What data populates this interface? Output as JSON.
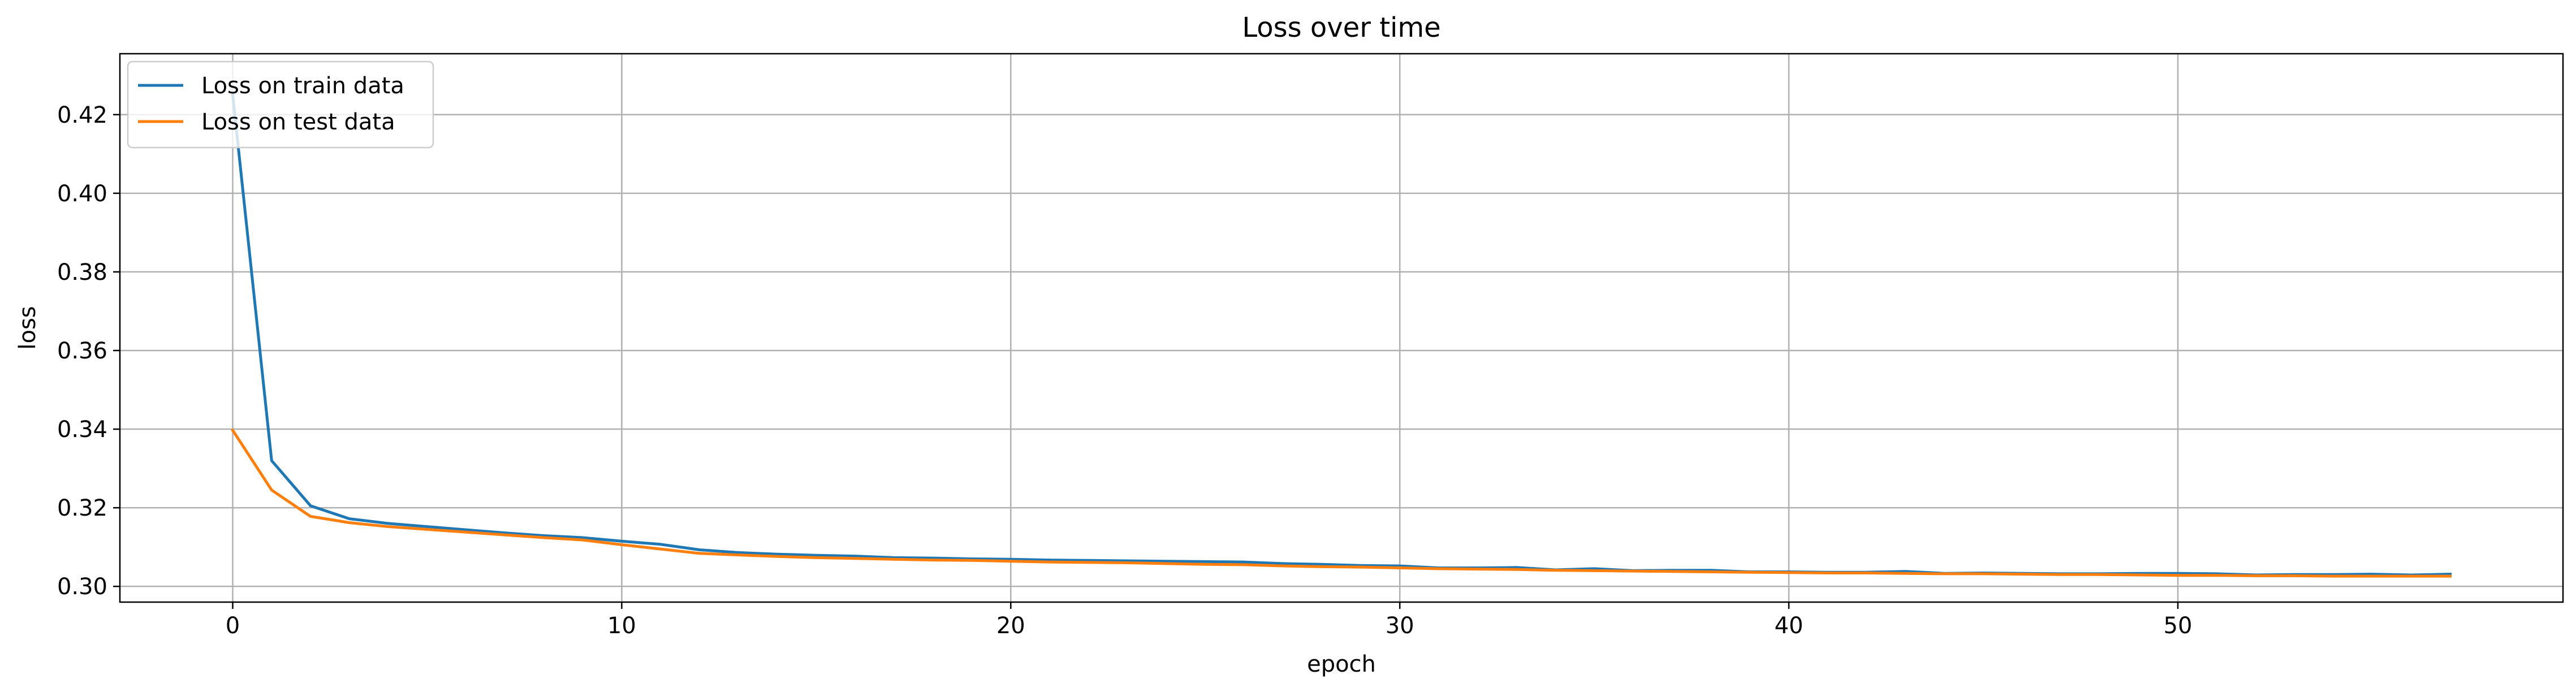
{
  "chart_data": {
    "type": "line",
    "title": "Loss over time",
    "xlabel": "epoch",
    "ylabel": "loss",
    "xlim": [
      -2.9,
      59.9
    ],
    "ylim": [
      0.296,
      0.4355
    ],
    "xticks": [
      0,
      10,
      20,
      30,
      40,
      50
    ],
    "yticks": [
      0.3,
      0.32,
      0.34,
      0.36,
      0.38,
      0.4,
      0.42
    ],
    "ytick_labels": [
      "0.30",
      "0.32",
      "0.34",
      "0.36",
      "0.38",
      "0.40",
      "0.42"
    ],
    "grid": true,
    "legend_position": "upper left",
    "x": [
      0,
      1,
      2,
      3,
      4,
      5,
      6,
      7,
      8,
      9,
      10,
      11,
      12,
      13,
      14,
      15,
      16,
      17,
      18,
      19,
      20,
      21,
      22,
      23,
      24,
      25,
      26,
      27,
      28,
      29,
      30,
      31,
      32,
      33,
      34,
      35,
      36,
      37,
      38,
      39,
      40,
      41,
      42,
      43,
      44,
      45,
      46,
      47,
      48,
      49,
      50,
      51,
      52,
      53,
      54,
      55,
      56,
      57
    ],
    "series": [
      {
        "name": "Loss on train data",
        "color": "#1f77b4",
        "values": [
          0.425,
          0.332,
          0.3205,
          0.3172,
          0.316,
          0.3152,
          0.3144,
          0.3136,
          0.3129,
          0.3124,
          0.3115,
          0.3107,
          0.3093,
          0.3086,
          0.3082,
          0.3079,
          0.3077,
          0.3073,
          0.3072,
          0.307,
          0.3069,
          0.3067,
          0.3066,
          0.3065,
          0.3064,
          0.3063,
          0.3062,
          0.3058,
          0.3056,
          0.3053,
          0.3052,
          0.3047,
          0.3047,
          0.3048,
          0.3042,
          0.3045,
          0.304,
          0.3041,
          0.3041,
          0.3037,
          0.3037,
          0.3036,
          0.3036,
          0.3038,
          0.3033,
          0.3034,
          0.3033,
          0.3032,
          0.3032,
          0.3033,
          0.3033,
          0.3032,
          0.3029,
          0.303,
          0.303,
          0.3031,
          0.3029,
          0.3031
        ]
      },
      {
        "name": "Loss on test data",
        "color": "#ff7f0e",
        "values": [
          0.3397,
          0.3245,
          0.3178,
          0.3162,
          0.3152,
          0.3145,
          0.3138,
          0.3131,
          0.3124,
          0.3118,
          0.3106,
          0.3095,
          0.3084,
          0.308,
          0.3076,
          0.3073,
          0.3071,
          0.3069,
          0.3067,
          0.3066,
          0.3064,
          0.3062,
          0.3061,
          0.306,
          0.3058,
          0.3056,
          0.3055,
          0.3052,
          0.305,
          0.3049,
          0.3047,
          0.3045,
          0.3044,
          0.3043,
          0.3041,
          0.304,
          0.3039,
          0.3038,
          0.3037,
          0.3036,
          0.3035,
          0.3034,
          0.3034,
          0.3033,
          0.3032,
          0.3032,
          0.3031,
          0.303,
          0.303,
          0.3029,
          0.3028,
          0.3028,
          0.3027,
          0.3027,
          0.3026,
          0.3026,
          0.3026,
          0.3026
        ]
      }
    ]
  }
}
